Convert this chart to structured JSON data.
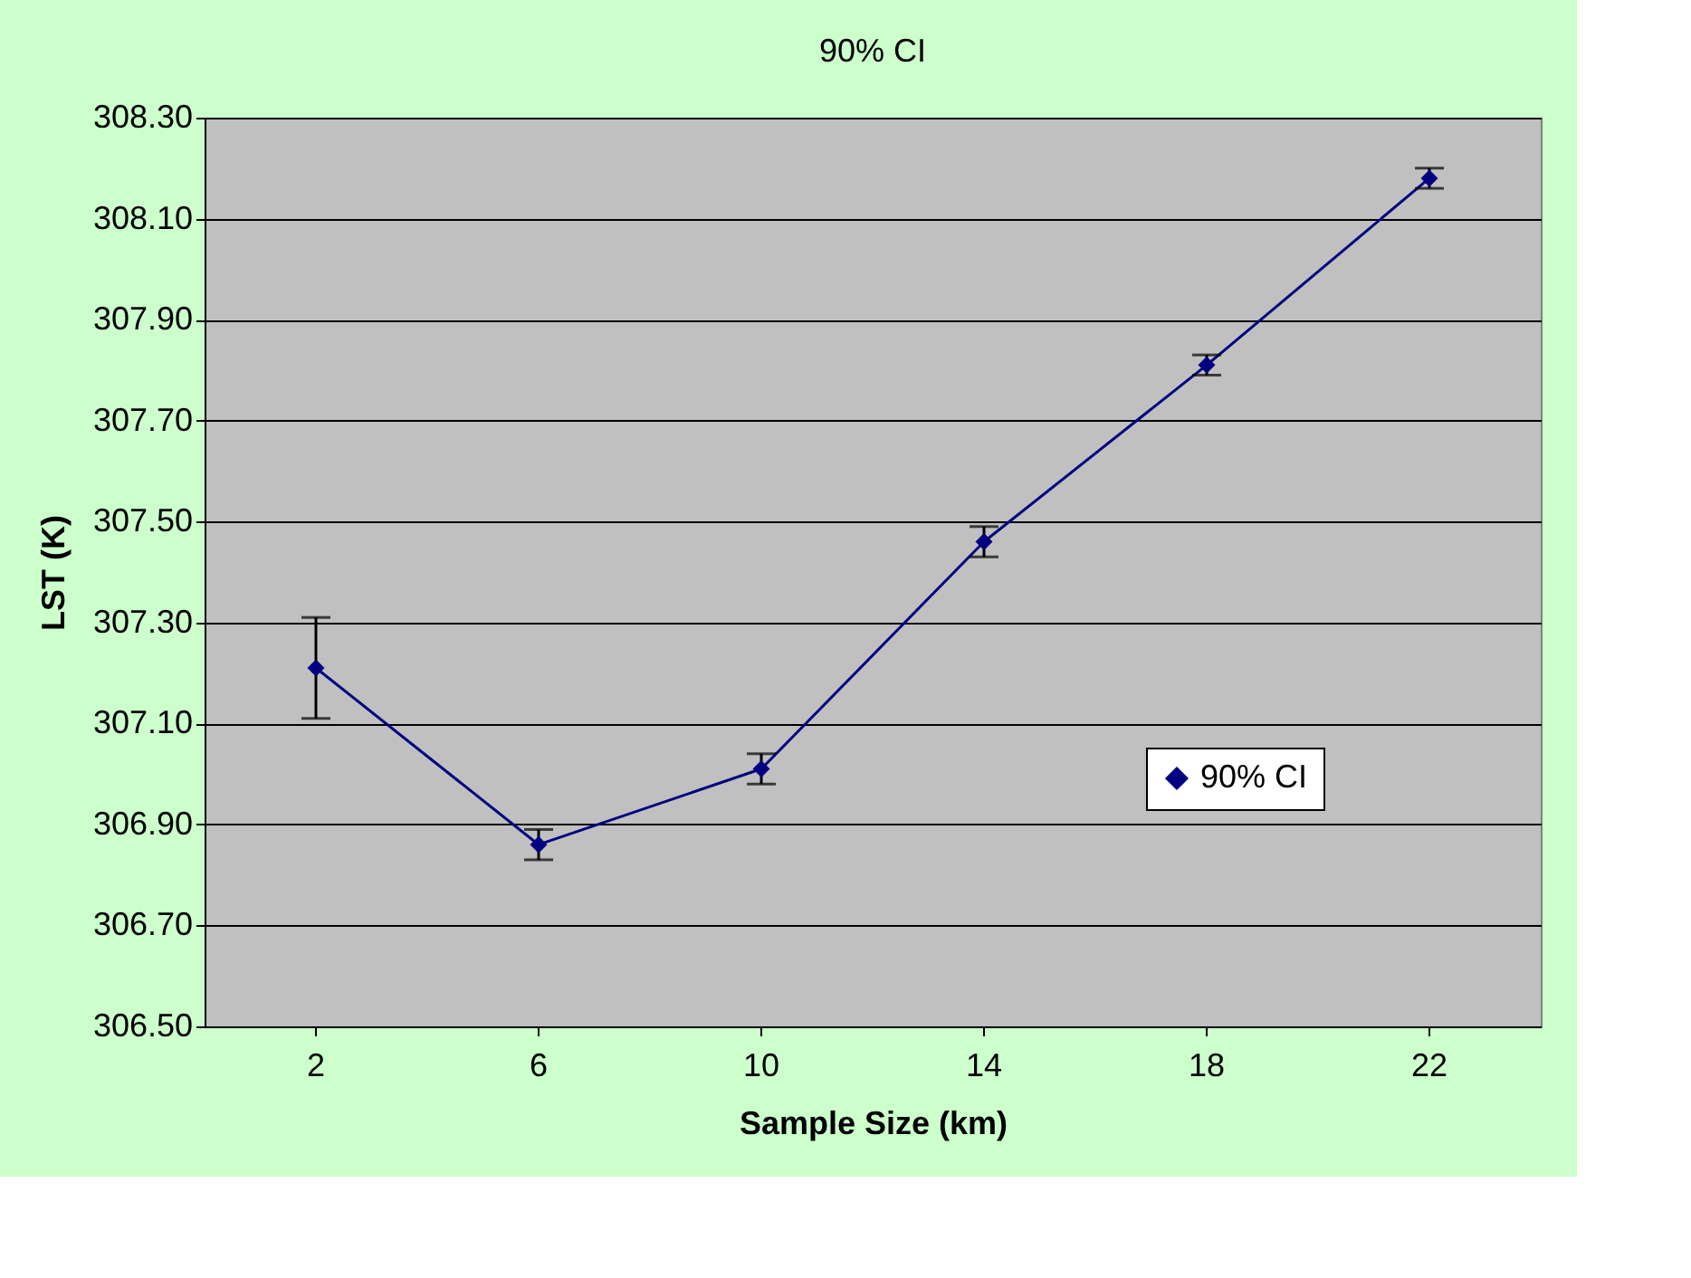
{
  "chart_data": {
    "type": "line",
    "title": "90% CI",
    "xlabel": "Sample Size (km)",
    "ylabel": "LST (K)",
    "categories": [
      "2",
      "6",
      "10",
      "14",
      "18",
      "22"
    ],
    "series": [
      {
        "name": "90% CI",
        "color": "#000080",
        "values": [
          307.21,
          306.86,
          307.01,
          307.46,
          307.81,
          308.18
        ],
        "errors": [
          0.1,
          0.03,
          0.03,
          0.03,
          0.02,
          0.02
        ]
      }
    ],
    "ylim": [
      306.5,
      308.3
    ],
    "yticks": [
      {
        "value": 306.5,
        "label": "306.50"
      },
      {
        "value": 306.7,
        "label": "306.70"
      },
      {
        "value": 306.9,
        "label": "306.90"
      },
      {
        "value": 307.1,
        "label": "307.10"
      },
      {
        "value": 307.3,
        "label": "307.30"
      },
      {
        "value": 307.5,
        "label": "307.50"
      },
      {
        "value": 307.7,
        "label": "307.70"
      },
      {
        "value": 307.9,
        "label": "307.90"
      },
      {
        "value": 308.1,
        "label": "308.10"
      },
      {
        "value": 308.3,
        "label": "308.30"
      }
    ],
    "grid": "y",
    "legend": "bottom right",
    "marker": "diamond",
    "line_style": "solid"
  }
}
